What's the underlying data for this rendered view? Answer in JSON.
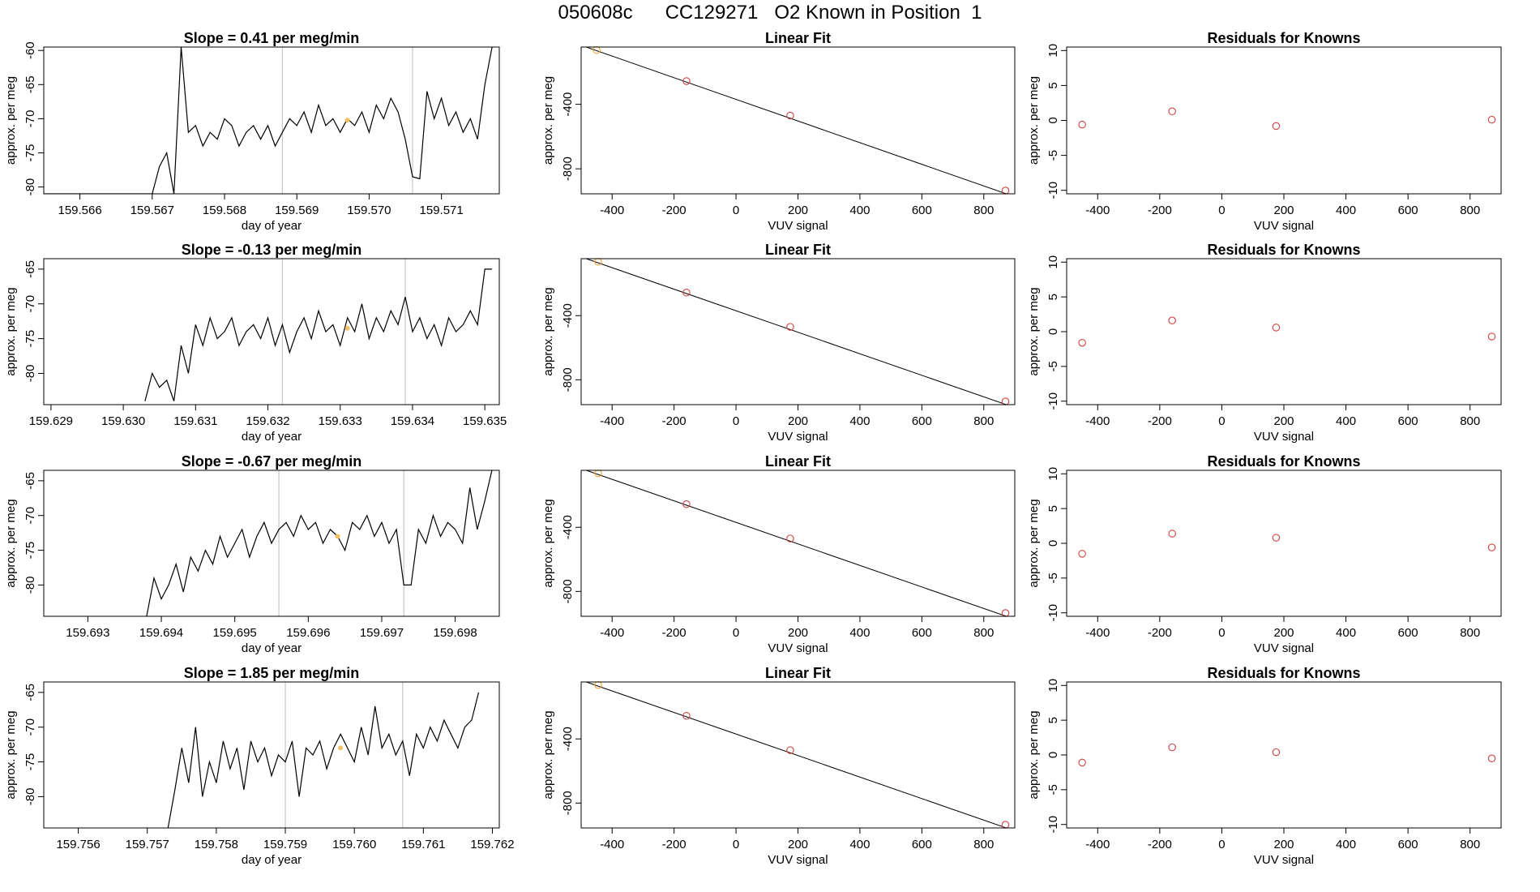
{
  "page_title": "050608c      CC129271   O2 Known in Position  1",
  "colors": {
    "trace": "#000000",
    "marker_gray": "#c8c8c8",
    "point_red": "#d04040",
    "point_orange": "#f0a030",
    "highlight": "#f5c060"
  },
  "chart_data": [
    {
      "type": "line",
      "title": "Slope =  0.41  per meg/min",
      "xlabel": "day of year",
      "ylabel": "approx. per meg",
      "xlim": [
        159.5655,
        159.5718
      ],
      "ylim": [
        -81,
        -59.5
      ],
      "xticks": [
        "159.566",
        "159.567",
        "159.568",
        "159.569",
        "159.570",
        "159.571"
      ],
      "yticks": [
        "-60",
        "-65",
        "-70",
        "-75",
        "-80"
      ],
      "markers_x": [
        159.5688,
        159.5706
      ],
      "highlight_point": [
        159.5697,
        -70.2
      ],
      "series": [
        {
          "name": "signal",
          "x": [
            159.5655,
            159.567,
            159.5671,
            159.5672,
            159.5673,
            159.5674,
            159.5675,
            159.5676,
            159.5677,
            159.5678,
            159.5679,
            159.568,
            159.5681,
            159.5682,
            159.5683,
            159.5684,
            159.5685,
            159.5686,
            159.5687,
            159.5688,
            159.5689,
            159.569,
            159.5691,
            159.5692,
            159.5693,
            159.5694,
            159.5695,
            159.5696,
            159.5697,
            159.5698,
            159.5699,
            159.57,
            159.5701,
            159.5702,
            159.5703,
            159.5704,
            159.5705,
            159.5706,
            159.5707,
            159.5708,
            159.5709,
            159.571,
            159.5711,
            159.5712,
            159.5713,
            159.5714,
            159.5715,
            159.5716,
            159.5717
          ],
          "y": [
            -81,
            -81,
            -77,
            -75,
            -81,
            -59.5,
            -72,
            -71,
            -74,
            -72,
            -73,
            -70,
            -71,
            -74,
            -72,
            -71,
            -73,
            -71,
            -74,
            -72,
            -70,
            -71,
            -69,
            -72,
            -68,
            -71,
            -70,
            -72,
            -70,
            -71,
            -69,
            -72,
            -68,
            -70,
            -67,
            -69,
            -73,
            -78.5,
            -78.8,
            -66,
            -70,
            -67,
            -71,
            -69,
            -72,
            -70,
            -73,
            -65,
            -59.5
          ]
        }
      ]
    },
    {
      "type": "scatter",
      "title": "Linear Fit",
      "xlabel": "VUV signal",
      "ylabel": "approx. per meg",
      "xlim": [
        -500,
        900
      ],
      "ylim": [
        -955,
        -45
      ],
      "xticks": [
        "-400",
        "-200",
        "0",
        "200",
        "400",
        "600",
        "800"
      ],
      "yticks": [
        "-400",
        "-800"
      ],
      "fit_line": [
        [
          -500,
          -34
        ],
        [
          880,
          -960
        ]
      ],
      "series": [
        {
          "name": "knowns",
          "x": [
            -450,
            -160,
            175,
            870
          ],
          "y": [
            -64,
            -256,
            -470,
            -935
          ]
        }
      ]
    },
    {
      "type": "scatter",
      "title": "Residuals for Knowns",
      "xlabel": "VUV signal",
      "ylabel": "approx. per meg",
      "xlim": [
        -500,
        900
      ],
      "ylim": [
        -10.5,
        10.5
      ],
      "xticks": [
        "-400",
        "-200",
        "0",
        "200",
        "400",
        "600",
        "800"
      ],
      "yticks": [
        "10",
        "5",
        "0",
        "-5",
        "-10"
      ],
      "series": [
        {
          "name": "residuals",
          "x": [
            -450,
            -160,
            175,
            870
          ],
          "y": [
            -0.6,
            1.3,
            -0.8,
            0.1
          ]
        }
      ]
    },
    {
      "type": "line",
      "title": "Slope =  -0.13  per meg/min",
      "xlabel": "day of year",
      "ylabel": "approx. per meg",
      "xlim": [
        159.6289,
        159.6352
      ],
      "ylim": [
        -84.5,
        -63.5
      ],
      "xticks": [
        "159.629",
        "159.630",
        "159.631",
        "159.632",
        "159.633",
        "159.634",
        "159.635"
      ],
      "yticks": [
        "-65",
        "-70",
        "-75",
        "-80"
      ],
      "markers_x": [
        159.6322,
        159.6339
      ],
      "highlight_point": [
        159.6331,
        -73.5
      ],
      "series": [
        {
          "name": "signal",
          "x": [
            159.6303,
            159.6304,
            159.6305,
            159.6306,
            159.6307,
            159.6308,
            159.6309,
            159.631,
            159.6311,
            159.6312,
            159.6313,
            159.6314,
            159.6315,
            159.6316,
            159.6317,
            159.6318,
            159.6319,
            159.632,
            159.6321,
            159.6322,
            159.6323,
            159.6324,
            159.6325,
            159.6326,
            159.6327,
            159.6328,
            159.6329,
            159.633,
            159.6331,
            159.6332,
            159.6333,
            159.6334,
            159.6335,
            159.6336,
            159.6337,
            159.6338,
            159.6339,
            159.634,
            159.6341,
            159.6342,
            159.6343,
            159.6344,
            159.6345,
            159.6346,
            159.6347,
            159.6348,
            159.6349,
            159.635,
            159.6351
          ],
          "y": [
            -84,
            -80,
            -82,
            -81,
            -84,
            -76,
            -80,
            -73,
            -76,
            -72,
            -75,
            -74,
            -72,
            -76,
            -74,
            -73,
            -75,
            -72,
            -76,
            -73,
            -77,
            -74,
            -72,
            -75,
            -71,
            -74,
            -73,
            -76,
            -72,
            -74,
            -70,
            -75,
            -72,
            -74,
            -71,
            -73,
            -69,
            -74,
            -72,
            -75,
            -73,
            -76,
            -72,
            -74,
            -73,
            -71,
            -73,
            -65,
            -65
          ]
        }
      ]
    },
    {
      "type": "scatter",
      "title": "Linear Fit",
      "xlabel": "VUV signal",
      "ylabel": "approx. per meg",
      "xlim": [
        -500,
        900
      ],
      "ylim": [
        -955,
        -45
      ],
      "xticks": [
        "-400",
        "-200",
        "0",
        "200",
        "400",
        "600",
        "800"
      ],
      "yticks": [
        "-400",
        "-800"
      ],
      "fit_line": [
        [
          -500,
          -34
        ],
        [
          880,
          -960
        ]
      ],
      "series": [
        {
          "name": "knowns",
          "x": [
            -445,
            -160,
            175,
            870
          ],
          "y": [
            -64,
            -256,
            -470,
            -935
          ]
        }
      ]
    },
    {
      "type": "scatter",
      "title": "Residuals for Knowns",
      "xlabel": "VUV signal",
      "ylabel": "approx. per meg",
      "xlim": [
        -500,
        900
      ],
      "ylim": [
        -10.5,
        10.5
      ],
      "xticks": [
        "-400",
        "-200",
        "0",
        "200",
        "400",
        "600",
        "800"
      ],
      "yticks": [
        "10",
        "5",
        "0",
        "-5",
        "-10"
      ],
      "series": [
        {
          "name": "residuals",
          "x": [
            -450,
            -160,
            175,
            870
          ],
          "y": [
            -1.6,
            1.6,
            0.6,
            -0.7
          ]
        }
      ]
    },
    {
      "type": "line",
      "title": "Slope =  -0.67  per meg/min",
      "xlabel": "day of year",
      "ylabel": "approx. per meg",
      "xlim": [
        159.6924,
        159.6986
      ],
      "ylim": [
        -84.5,
        -63.5
      ],
      "xticks": [
        "159.693",
        "159.694",
        "159.695",
        "159.696",
        "159.697",
        "159.698"
      ],
      "yticks": [
        "-65",
        "-70",
        "-75",
        "-80"
      ],
      "markers_x": [
        159.6956,
        159.6973
      ],
      "highlight_point": [
        159.6964,
        -73
      ],
      "series": [
        {
          "name": "signal",
          "x": [
            159.6938,
            159.6939,
            159.694,
            159.6941,
            159.6942,
            159.6943,
            159.6944,
            159.6945,
            159.6946,
            159.6947,
            159.6948,
            159.6949,
            159.695,
            159.6951,
            159.6952,
            159.6953,
            159.6954,
            159.6955,
            159.6956,
            159.6957,
            159.6958,
            159.6959,
            159.696,
            159.6961,
            159.6962,
            159.6963,
            159.6964,
            159.6965,
            159.6966,
            159.6967,
            159.6968,
            159.6969,
            159.697,
            159.6971,
            159.6972,
            159.6973,
            159.6974,
            159.6975,
            159.6976,
            159.6977,
            159.6978,
            159.6979,
            159.698,
            159.6981,
            159.6982,
            159.6983,
            159.6984,
            159.6985
          ],
          "y": [
            -84.5,
            -79,
            -82,
            -80,
            -77,
            -81,
            -76,
            -78,
            -75,
            -77,
            -73,
            -76,
            -74,
            -72,
            -76,
            -73,
            -71,
            -74,
            -72,
            -71,
            -73,
            -70,
            -72,
            -71,
            -74,
            -72,
            -73,
            -75,
            -71,
            -72,
            -70,
            -73,
            -71,
            -74,
            -72,
            -80,
            -80,
            -72,
            -74,
            -70,
            -73,
            -71,
            -72,
            -74,
            -66,
            -72,
            -68,
            -63.5
          ]
        }
      ]
    },
    {
      "type": "scatter",
      "title": "Linear Fit",
      "xlabel": "VUV signal",
      "ylabel": "approx. per meg",
      "xlim": [
        -500,
        900
      ],
      "ylim": [
        -955,
        -45
      ],
      "xticks": [
        "-400",
        "-200",
        "0",
        "200",
        "400",
        "600",
        "800"
      ],
      "yticks": [
        "-400",
        "-800"
      ],
      "fit_line": [
        [
          -500,
          -34
        ],
        [
          880,
          -960
        ]
      ],
      "series": [
        {
          "name": "knowns",
          "x": [
            -445,
            -160,
            175,
            870
          ],
          "y": [
            -64,
            -256,
            -470,
            -935
          ]
        }
      ]
    },
    {
      "type": "scatter",
      "title": "Residuals for Knowns",
      "xlabel": "VUV signal",
      "ylabel": "approx. per meg",
      "xlim": [
        -500,
        900
      ],
      "ylim": [
        -10.5,
        10.5
      ],
      "xticks": [
        "-400",
        "-200",
        "0",
        "200",
        "400",
        "600",
        "800"
      ],
      "yticks": [
        "10",
        "5",
        "0",
        "-5",
        "-10"
      ],
      "series": [
        {
          "name": "residuals",
          "x": [
            -450,
            -160,
            175,
            870
          ],
          "y": [
            -1.5,
            1.4,
            0.8,
            -0.6
          ]
        }
      ]
    },
    {
      "type": "line",
      "title": "Slope =  1.85  per meg/min",
      "xlabel": "day of year",
      "ylabel": "approx. per meg",
      "xlim": [
        159.7555,
        159.7621
      ],
      "ylim": [
        -84.5,
        -63.5
      ],
      "xticks": [
        "159.756",
        "159.757",
        "159.758",
        "159.759",
        "159.760",
        "159.761",
        "159.762"
      ],
      "yticks": [
        "-65",
        "-70",
        "-75",
        "-80"
      ],
      "markers_x": [
        159.759,
        159.7607
      ],
      "highlight_point": [
        159.7598,
        -73
      ],
      "series": [
        {
          "name": "signal",
          "x": [
            159.7573,
            159.7574,
            159.7575,
            159.7576,
            159.7577,
            159.7578,
            159.7579,
            159.758,
            159.7581,
            159.7582,
            159.7583,
            159.7584,
            159.7585,
            159.7586,
            159.7587,
            159.7588,
            159.7589,
            159.759,
            159.7591,
            159.7592,
            159.7593,
            159.7594,
            159.7595,
            159.7596,
            159.7597,
            159.7598,
            159.7599,
            159.76,
            159.7601,
            159.7602,
            159.7603,
            159.7604,
            159.7605,
            159.7606,
            159.7607,
            159.7608,
            159.7609,
            159.761,
            159.7611,
            159.7612,
            159.7613,
            159.7614,
            159.7615,
            159.7616,
            159.7617,
            159.7618
          ],
          "y": [
            -84.5,
            -79,
            -73,
            -78,
            -70,
            -80,
            -75,
            -78,
            -72,
            -76,
            -73,
            -79,
            -72,
            -75,
            -73,
            -77,
            -74,
            -75,
            -72,
            -80,
            -73,
            -74,
            -72,
            -76,
            -73,
            -71,
            -73,
            -75,
            -70,
            -74,
            -67,
            -73,
            -71,
            -74,
            -72,
            -77,
            -71,
            -73,
            -70,
            -72,
            -69,
            -71,
            -73,
            -70,
            -69,
            -65
          ]
        }
      ]
    },
    {
      "type": "scatter",
      "title": "Linear Fit",
      "xlabel": "VUV signal",
      "ylabel": "approx. per meg",
      "xlim": [
        -500,
        900
      ],
      "ylim": [
        -955,
        -45
      ],
      "xticks": [
        "-400",
        "-200",
        "0",
        "200",
        "400",
        "600",
        "800"
      ],
      "yticks": [
        "-400",
        "-800"
      ],
      "fit_line": [
        [
          -500,
          -34
        ],
        [
          880,
          -960
        ]
      ],
      "series": [
        {
          "name": "knowns",
          "x": [
            -445,
            -160,
            175,
            870
          ],
          "y": [
            -64,
            -256,
            -470,
            -935
          ]
        }
      ]
    },
    {
      "type": "scatter",
      "title": "Residuals for Knowns",
      "xlabel": "VUV signal",
      "ylabel": "approx. per meg",
      "xlim": [
        -500,
        900
      ],
      "ylim": [
        -10.5,
        10.5
      ],
      "xticks": [
        "-400",
        "-200",
        "0",
        "200",
        "400",
        "600",
        "800"
      ],
      "yticks": [
        "10",
        "5",
        "0",
        "-5",
        "-10"
      ],
      "series": [
        {
          "name": "residuals",
          "x": [
            -450,
            -160,
            175,
            870
          ],
          "y": [
            -1.1,
            1.1,
            0.4,
            -0.5
          ]
        }
      ]
    }
  ]
}
